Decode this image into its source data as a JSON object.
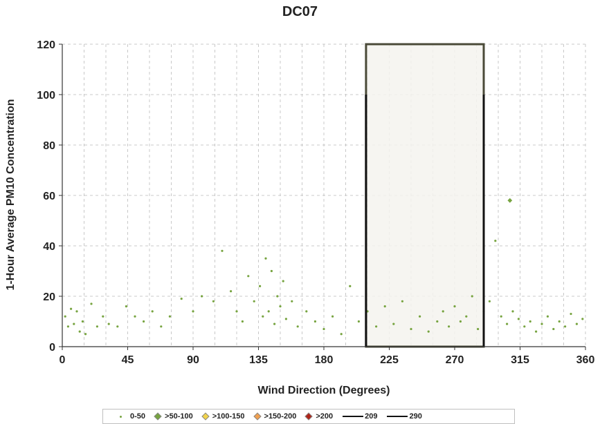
{
  "chart_data": {
    "type": "scatter",
    "title": "DC07",
    "xlabel": "Wind Direction (Degrees)",
    "ylabel": "1-Hour Average PM10 Concentration",
    "xlim": [
      0,
      360
    ],
    "ylim": [
      0,
      120
    ],
    "xticks": [
      0,
      45,
      90,
      135,
      180,
      225,
      270,
      315,
      360
    ],
    "yticks": [
      0,
      20,
      40,
      60,
      80,
      100,
      120
    ],
    "grid": "dashed",
    "legend_position": "bottom",
    "highlight_region": {
      "x": [
        209,
        290
      ],
      "y": [
        0,
        120
      ]
    },
    "series": [
      {
        "name": "0-50",
        "marker": "dot",
        "color": "#77a440",
        "points": [
          [
            2,
            12
          ],
          [
            4,
            8
          ],
          [
            6,
            15
          ],
          [
            8,
            9
          ],
          [
            10,
            14
          ],
          [
            12,
            6
          ],
          [
            14,
            10
          ],
          [
            16,
            5
          ],
          [
            20,
            17
          ],
          [
            24,
            8
          ],
          [
            28,
            12
          ],
          [
            32,
            9
          ],
          [
            38,
            8
          ],
          [
            44,
            16
          ],
          [
            50,
            12
          ],
          [
            56,
            10
          ],
          [
            62,
            14
          ],
          [
            68,
            8
          ],
          [
            74,
            12
          ],
          [
            82,
            19
          ],
          [
            90,
            14
          ],
          [
            96,
            20
          ],
          [
            104,
            18
          ],
          [
            110,
            38
          ],
          [
            116,
            22
          ],
          [
            120,
            14
          ],
          [
            124,
            10
          ],
          [
            128,
            28
          ],
          [
            132,
            18
          ],
          [
            136,
            24
          ],
          [
            138,
            12
          ],
          [
            140,
            35
          ],
          [
            142,
            14
          ],
          [
            144,
            30
          ],
          [
            146,
            9
          ],
          [
            148,
            20
          ],
          [
            150,
            16
          ],
          [
            152,
            26
          ],
          [
            154,
            11
          ],
          [
            158,
            18
          ],
          [
            162,
            8
          ],
          [
            168,
            14
          ],
          [
            174,
            10
          ],
          [
            180,
            7
          ],
          [
            186,
            12
          ],
          [
            192,
            5
          ],
          [
            198,
            24
          ],
          [
            204,
            10
          ],
          [
            210,
            14
          ],
          [
            216,
            8
          ],
          [
            222,
            16
          ],
          [
            228,
            9
          ],
          [
            234,
            18
          ],
          [
            240,
            7
          ],
          [
            246,
            12
          ],
          [
            252,
            6
          ],
          [
            258,
            10
          ],
          [
            262,
            14
          ],
          [
            266,
            8
          ],
          [
            270,
            16
          ],
          [
            274,
            10
          ],
          [
            278,
            12
          ],
          [
            282,
            20
          ],
          [
            286,
            7
          ],
          [
            290,
            14
          ],
          [
            294,
            18
          ],
          [
            298,
            42
          ],
          [
            302,
            12
          ],
          [
            306,
            9
          ],
          [
            310,
            14
          ],
          [
            314,
            11
          ],
          [
            318,
            8
          ],
          [
            322,
            10
          ],
          [
            326,
            6
          ],
          [
            330,
            9
          ],
          [
            334,
            12
          ],
          [
            338,
            7
          ],
          [
            342,
            10
          ],
          [
            346,
            8
          ],
          [
            350,
            13
          ],
          [
            354,
            9
          ],
          [
            358,
            11
          ]
        ]
      },
      {
        "name": ">50-100",
        "marker": "diamond",
        "color": "#77a440",
        "points": [
          [
            308,
            58
          ]
        ]
      },
      {
        "name": ">100-150",
        "marker": "diamond",
        "color": "#f3d44a",
        "points": []
      },
      {
        "name": ">150-200",
        "marker": "diamond",
        "color": "#f0a050",
        "points": []
      },
      {
        "name": ">200",
        "marker": "diamond",
        "color": "#b02418",
        "points": []
      },
      {
        "name": "209",
        "marker": "line",
        "color": "#111111",
        "points": [
          [
            209,
            0
          ],
          [
            209,
            100
          ]
        ]
      },
      {
        "name": "290",
        "marker": "line",
        "color": "#111111",
        "points": [
          [
            290,
            0
          ],
          [
            290,
            100
          ]
        ]
      }
    ]
  }
}
